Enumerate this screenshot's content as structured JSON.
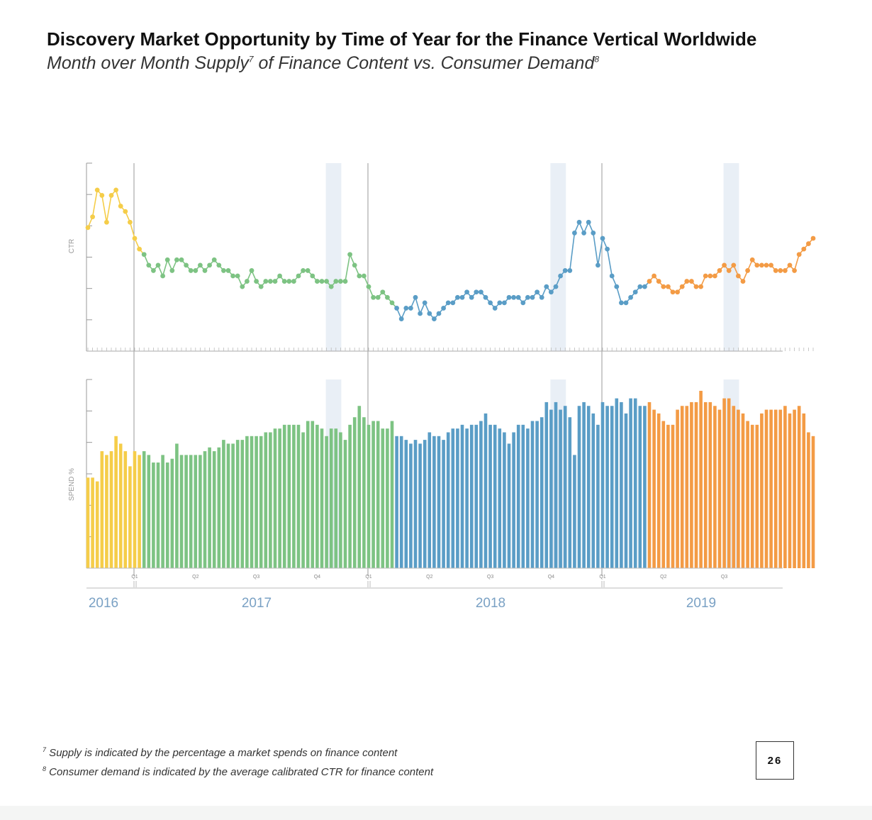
{
  "page": {
    "title": "Discovery Market Opportunity by Time of Year for the Finance Vertical Worldwide",
    "subtitle_text": "Month over Month Supply",
    "subtitle_sup1": "7",
    "subtitle_mid": " of Finance Content vs. Consumer Demand",
    "subtitle_sup2": "8",
    "footnote_1_marker": "7",
    "footnote_1": " Supply is indicated by the percentage a market spends on finance content",
    "footnote_2_marker": "8",
    "footnote_2": " Consumer demand is indicated by the average calibrated CTR for finance content",
    "page_number": "26"
  },
  "chart_data": {
    "type": "line+bar",
    "top_panel": {
      "type": "line",
      "ylabel": "CTR"
    },
    "bottom_panel": {
      "type": "bar",
      "ylabel": "SPEND %"
    },
    "years": [
      {
        "label": "2016",
        "color": "#f5cd49"
      },
      {
        "label": "2017",
        "color": "#7dc383"
      },
      {
        "label": "2018",
        "color": "#5a9dc6"
      },
      {
        "label": "2019",
        "color": "#f39b45"
      }
    ],
    "quarter_labels": [
      "Q1",
      "Q2",
      "Q3",
      "Q4",
      "Q1",
      "Q2",
      "Q3",
      "Q4",
      "Q1",
      "Q2",
      "Q3"
    ],
    "highlight_color": "#e9eff6",
    "ctr_series": [
      {
        "year": "2016",
        "values": [
          63,
          65,
          70,
          69,
          64,
          69,
          70,
          67,
          66,
          64,
          61,
          59
        ]
      },
      {
        "year": "2017",
        "values": [
          58,
          56,
          55,
          56,
          54,
          57,
          55,
          57,
          57,
          56,
          55,
          55,
          56,
          55,
          56,
          57,
          56,
          55,
          55,
          54,
          54,
          52,
          53,
          55,
          53,
          52,
          53,
          53,
          53,
          54,
          53,
          53,
          53,
          54,
          55,
          55,
          54,
          53,
          53,
          53,
          52,
          53,
          53,
          53,
          58,
          56,
          54,
          54,
          52,
          50,
          50,
          51,
          50,
          49
        ]
      },
      {
        "year": "2018",
        "values": [
          48,
          46,
          48,
          48,
          50,
          47,
          49,
          47,
          46,
          47,
          48,
          49,
          49,
          50,
          50,
          51,
          50,
          51,
          51,
          50,
          49,
          48,
          49,
          49,
          50,
          50,
          50,
          49,
          50,
          50,
          51,
          50,
          52,
          51,
          52,
          54,
          55,
          55,
          62,
          64,
          62,
          64,
          62,
          56,
          61,
          59,
          54,
          52,
          49,
          49,
          50,
          51,
          52,
          52
        ]
      },
      {
        "year": "2019",
        "values": [
          53,
          54,
          53,
          52,
          52,
          51,
          51,
          52,
          53,
          53,
          52,
          52,
          54,
          54,
          54,
          55,
          56,
          55,
          56,
          54,
          53,
          55,
          57,
          56,
          56,
          56,
          56,
          55,
          55,
          55,
          56,
          55,
          58,
          59,
          60,
          61
        ]
      }
    ],
    "spend_series": [
      {
        "year": "2016",
        "values": [
          24,
          24,
          23,
          31,
          30,
          31,
          35,
          33,
          31,
          27,
          31,
          30
        ]
      },
      {
        "year": "2017",
        "values": [
          31,
          30,
          28,
          28,
          30,
          28,
          29,
          33,
          30,
          30,
          30,
          30,
          30,
          31,
          32,
          31,
          32,
          34,
          33,
          33,
          34,
          34,
          35,
          35,
          35,
          35,
          36,
          36,
          37,
          37,
          38,
          38,
          38,
          38,
          36,
          39,
          39,
          38,
          37,
          35,
          37,
          37,
          36,
          34,
          38,
          40,
          43,
          40,
          38,
          39,
          39,
          37,
          37,
          39
        ]
      },
      {
        "year": "2018",
        "values": [
          35,
          35,
          34,
          33,
          34,
          33,
          34,
          36,
          35,
          35,
          34,
          36,
          37,
          37,
          38,
          37,
          38,
          38,
          39,
          41,
          38,
          38,
          37,
          36,
          33,
          36,
          38,
          38,
          37,
          39,
          39,
          40,
          44,
          42,
          44,
          42,
          43,
          40,
          30,
          43,
          44,
          43,
          41,
          38,
          44,
          43,
          43,
          45,
          44,
          41,
          45,
          45,
          43,
          43
        ]
      },
      {
        "year": "2019",
        "values": [
          44,
          42,
          41,
          39,
          38,
          38,
          42,
          43,
          43,
          44,
          44,
          47,
          44,
          44,
          43,
          42,
          45,
          45,
          43,
          42,
          41,
          39,
          38,
          38,
          41,
          42,
          42,
          42,
          42,
          43,
          41,
          42,
          43,
          41,
          36,
          35
        ]
      }
    ]
  }
}
